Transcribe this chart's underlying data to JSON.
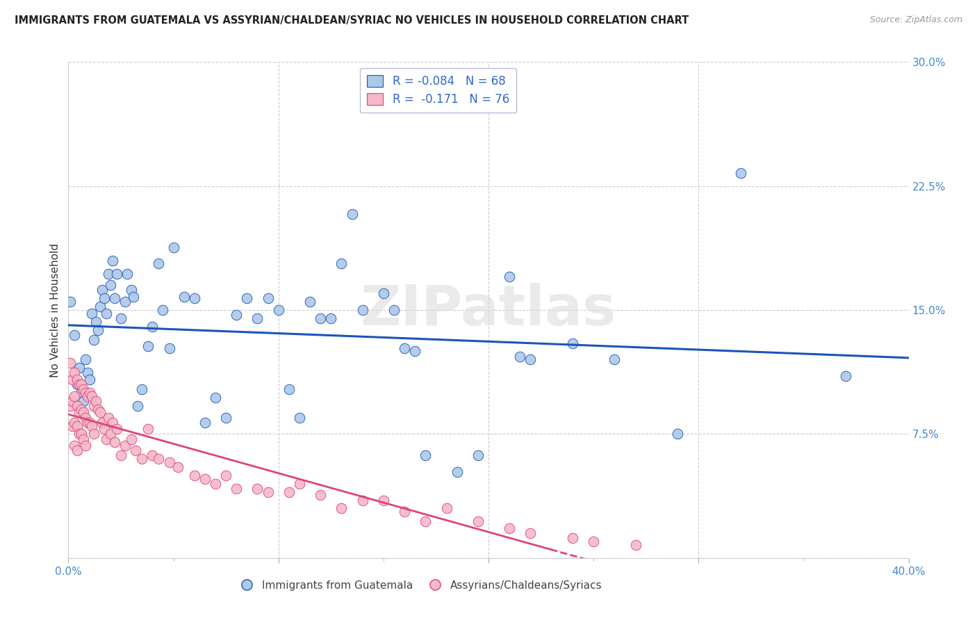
{
  "title": "IMMIGRANTS FROM GUATEMALA VS ASSYRIAN/CHALDEAN/SYRIAC NO VEHICLES IN HOUSEHOLD CORRELATION CHART",
  "source": "Source: ZipAtlas.com",
  "ylabel": "No Vehicles in Household",
  "xlim": [
    0.0,
    0.4
  ],
  "ylim": [
    0.0,
    0.3
  ],
  "xticks_major": [
    0.0,
    0.1,
    0.2,
    0.3,
    0.4
  ],
  "xtick_labels_show": {
    "0.0": "0.0%",
    "0.40": "40.0%"
  },
  "ytick_labels": {
    "0.0": "",
    "0.075": "7.5%",
    "0.15": "15.0%",
    "0.225": "22.5%",
    "0.30": "30.0%"
  },
  "blue_R": -0.084,
  "blue_N": 68,
  "pink_R": -0.171,
  "pink_N": 76,
  "legend_label_blue": "Immigrants from Guatemala",
  "legend_label_pink": "Assyrians/Chaldeans/Syriacs",
  "scatter_color_blue": "#adc8e8",
  "scatter_color_pink": "#f5b8c8",
  "line_color_blue": "#1a55bb",
  "line_color_pink": "#dd4477",
  "watermark": "ZIPatlas",
  "background_color": "#ffffff",
  "blue_scatter_x": [
    0.001,
    0.003,
    0.004,
    0.005,
    0.006,
    0.007,
    0.008,
    0.009,
    0.01,
    0.011,
    0.012,
    0.013,
    0.014,
    0.015,
    0.016,
    0.017,
    0.018,
    0.019,
    0.02,
    0.021,
    0.022,
    0.023,
    0.025,
    0.027,
    0.028,
    0.03,
    0.031,
    0.033,
    0.035,
    0.038,
    0.04,
    0.043,
    0.045,
    0.048,
    0.05,
    0.055,
    0.06,
    0.065,
    0.07,
    0.075,
    0.08,
    0.085,
    0.09,
    0.095,
    0.1,
    0.105,
    0.11,
    0.115,
    0.12,
    0.125,
    0.13,
    0.135,
    0.14,
    0.15,
    0.155,
    0.16,
    0.165,
    0.17,
    0.185,
    0.195,
    0.21,
    0.215,
    0.22,
    0.24,
    0.26,
    0.29,
    0.32,
    0.37
  ],
  "blue_scatter_y": [
    0.155,
    0.135,
    0.105,
    0.115,
    0.1,
    0.095,
    0.12,
    0.112,
    0.108,
    0.148,
    0.132,
    0.143,
    0.138,
    0.152,
    0.162,
    0.157,
    0.148,
    0.172,
    0.165,
    0.18,
    0.157,
    0.172,
    0.145,
    0.155,
    0.172,
    0.162,
    0.158,
    0.092,
    0.102,
    0.128,
    0.14,
    0.178,
    0.15,
    0.127,
    0.188,
    0.158,
    0.157,
    0.082,
    0.097,
    0.085,
    0.147,
    0.157,
    0.145,
    0.157,
    0.15,
    0.102,
    0.085,
    0.155,
    0.145,
    0.145,
    0.178,
    0.208,
    0.15,
    0.16,
    0.15,
    0.127,
    0.125,
    0.062,
    0.052,
    0.062,
    0.17,
    0.122,
    0.12,
    0.13,
    0.12,
    0.075,
    0.233,
    0.11
  ],
  "pink_scatter_x": [
    0.001,
    0.001,
    0.002,
    0.002,
    0.002,
    0.003,
    0.003,
    0.003,
    0.003,
    0.004,
    0.004,
    0.004,
    0.004,
    0.005,
    0.005,
    0.005,
    0.006,
    0.006,
    0.006,
    0.007,
    0.007,
    0.007,
    0.008,
    0.008,
    0.008,
    0.009,
    0.009,
    0.01,
    0.01,
    0.011,
    0.011,
    0.012,
    0.012,
    0.013,
    0.014,
    0.015,
    0.016,
    0.017,
    0.018,
    0.019,
    0.02,
    0.021,
    0.022,
    0.023,
    0.025,
    0.027,
    0.03,
    0.032,
    0.035,
    0.038,
    0.04,
    0.043,
    0.048,
    0.052,
    0.06,
    0.065,
    0.07,
    0.075,
    0.08,
    0.09,
    0.095,
    0.105,
    0.11,
    0.12,
    0.13,
    0.14,
    0.15,
    0.16,
    0.17,
    0.18,
    0.195,
    0.21,
    0.22,
    0.24,
    0.25,
    0.27
  ],
  "pink_scatter_y": [
    0.118,
    0.092,
    0.108,
    0.095,
    0.08,
    0.112,
    0.098,
    0.082,
    0.068,
    0.108,
    0.092,
    0.08,
    0.065,
    0.105,
    0.088,
    0.075,
    0.105,
    0.09,
    0.075,
    0.102,
    0.088,
    0.072,
    0.1,
    0.085,
    0.068,
    0.098,
    0.082,
    0.1,
    0.082,
    0.098,
    0.08,
    0.092,
    0.075,
    0.095,
    0.09,
    0.088,
    0.082,
    0.078,
    0.072,
    0.085,
    0.075,
    0.082,
    0.07,
    0.078,
    0.062,
    0.068,
    0.072,
    0.065,
    0.06,
    0.078,
    0.062,
    0.06,
    0.058,
    0.055,
    0.05,
    0.048,
    0.045,
    0.05,
    0.042,
    0.042,
    0.04,
    0.04,
    0.045,
    0.038,
    0.03,
    0.035,
    0.035,
    0.028,
    0.022,
    0.03,
    0.022,
    0.018,
    0.015,
    0.012,
    0.01,
    0.008
  ]
}
